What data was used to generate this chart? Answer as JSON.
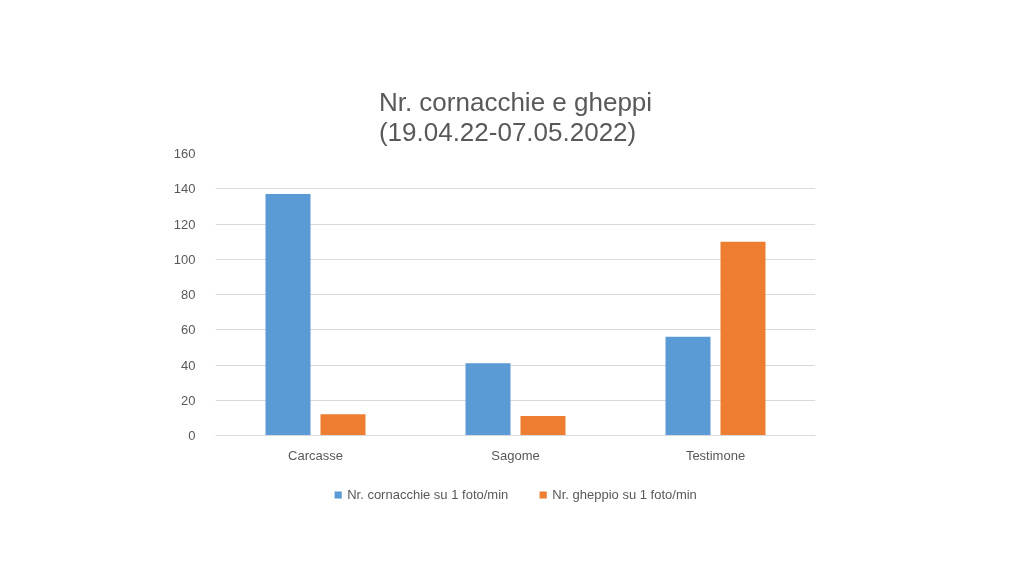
{
  "chart_data": {
    "type": "bar",
    "title": "Nr. cornacchie e gheppi\n(19.04.22-07.05.2022)",
    "categories": [
      "Carcasse",
      "Sagome",
      "Testimone"
    ],
    "series": [
      {
        "name": "Nr. cornacchie su 1 foto/min",
        "color": "#5b9bd5",
        "values": [
          137,
          41,
          56
        ]
      },
      {
        "name": "Nr. gheppio su 1 foto/min",
        "color": "#ed7d31",
        "values": [
          12,
          11,
          110
        ]
      }
    ],
    "ylim": [
      0,
      160
    ],
    "yticks": [
      0,
      20,
      40,
      60,
      80,
      100,
      120,
      140,
      160
    ],
    "grid": "y",
    "legend": "bottom"
  }
}
